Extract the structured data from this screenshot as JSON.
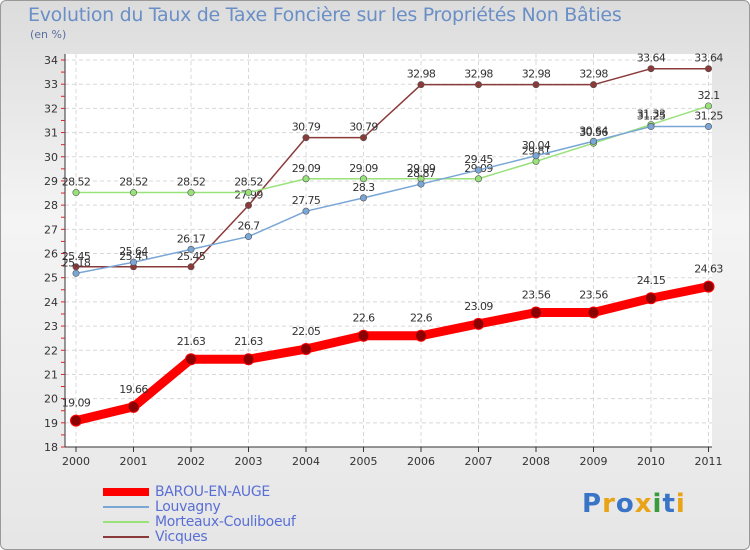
{
  "title": "Evolution du Taux de Taxe Foncière sur les Propriétés Non Bâties",
  "unit_label": "(en %)",
  "logo": {
    "text": "Proxiti",
    "letters": [
      "P",
      "r",
      "o",
      "x",
      "i",
      "t",
      "i"
    ],
    "colors": [
      "#3a74c6",
      "#e8a317",
      "#3a74c6",
      "#e8a317",
      "#3a9b3a",
      "#3a74c6",
      "#e8a317"
    ]
  },
  "chart_data": {
    "type": "line",
    "x": [
      "2000",
      "2001",
      "2002",
      "2003",
      "2004",
      "2005",
      "2006",
      "2007",
      "2008",
      "2009",
      "2010",
      "2011"
    ],
    "ylim": [
      18,
      34
    ],
    "yticks": [
      18,
      19,
      20,
      21,
      22,
      23,
      24,
      25,
      26,
      27,
      28,
      29,
      30,
      31,
      32,
      33,
      34
    ],
    "grid": true,
    "legend_position": "bottom-left",
    "series": [
      {
        "name": "BAROU-EN-AUGE",
        "color": "#ff0000",
        "values": [
          19.09,
          19.66,
          21.63,
          21.63,
          22.05,
          22.6,
          22.6,
          23.09,
          23.56,
          23.56,
          24.15,
          24.63
        ],
        "labels": [
          "19.09",
          "19.66",
          "21.63",
          "21.63",
          "22.05",
          "22.6",
          "22.6",
          "23.09",
          "23.56",
          "23.56",
          "24.15",
          "24.63"
        ]
      },
      {
        "name": "Louvagny",
        "color": "#7aa6d6",
        "values": [
          25.18,
          25.64,
          26.17,
          26.7,
          27.75,
          28.3,
          28.87,
          29.45,
          30.04,
          30.64,
          31.25,
          31.25
        ],
        "labels": [
          "25.18",
          "25.64",
          "26.17",
          "26.7",
          "27.75",
          "28.3",
          "28.87",
          "29.45",
          "30.04",
          "30.64",
          "31.25",
          "31.25"
        ]
      },
      {
        "name": "Morteaux-Couliboeuf",
        "color": "#99e27a",
        "values": [
          28.52,
          28.52,
          28.52,
          28.52,
          29.09,
          29.09,
          29.09,
          29.09,
          29.81,
          30.56,
          31.33,
          32.1
        ],
        "labels": [
          "28.52",
          "28.52",
          "28.52",
          "28.52",
          "29.09",
          "29.09",
          "29.09",
          "29.09",
          "29.81",
          "30.56",
          "31.33",
          "32.1"
        ]
      },
      {
        "name": "Vicques",
        "color": "#8b3a3a",
        "values": [
          25.45,
          25.45,
          25.45,
          27.99,
          30.79,
          30.79,
          32.98,
          32.98,
          32.98,
          32.98,
          33.64,
          33.64
        ],
        "labels": [
          "25.45",
          "25.45",
          "25.45",
          "27.99",
          "30.79",
          "30.79",
          "32.98",
          "32.98",
          "32.98",
          "32.98",
          "33.64",
          "33.64"
        ]
      }
    ]
  }
}
